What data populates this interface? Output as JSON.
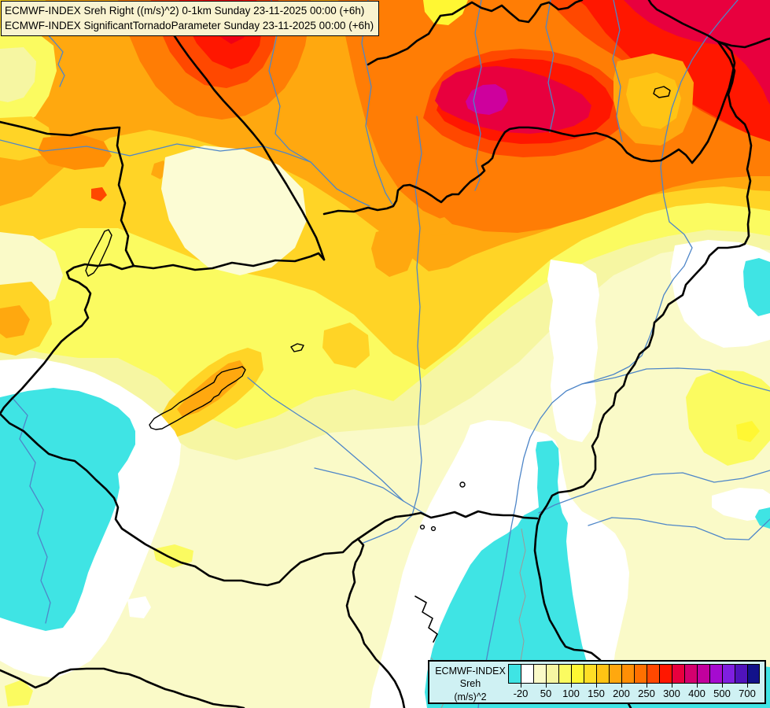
{
  "header": {
    "line1": "ECMWF-INDEX Sreh Right ((m/s)^2) 0-1km Sunday 23-11-2025 00:00 (+6h)",
    "line2": "ECMWF-INDEX SignificantTornadoParameter Sunday 23-11-2025 00:00 (+6h)"
  },
  "legend": {
    "product": "ECMWF-INDEX",
    "parameter": "Sreh",
    "units": "(m/s)^2",
    "tick_labels": [
      "-20",
      "50",
      "100",
      "150",
      "200",
      "250",
      "300",
      "400",
      "500",
      "700"
    ],
    "colors": [
      "#3FE4E4",
      "#FFFFFF",
      "#FAFAC8",
      "#F6F6A2",
      "#FBFB60",
      "#FFF733",
      "#FFDE26",
      "#FFC414",
      "#FFA80F",
      "#FF8F05",
      "#FF7000",
      "#FF4800",
      "#FF1700",
      "#E8003E",
      "#D4006E",
      "#C2009D",
      "#A50BD0",
      "#7F1FE0",
      "#5013BC",
      "#12128A"
    ],
    "box_background": "#CFF1F3"
  },
  "map": {
    "feature_colors": {
      "country_border": "#000000",
      "river": "#4E86C8",
      "admin_line": "#9A9A9A",
      "lake_outline": "#000000",
      "lowest_value_fill": "#3FE4E4",
      "base_fill": "#FAFAC8"
    }
  }
}
